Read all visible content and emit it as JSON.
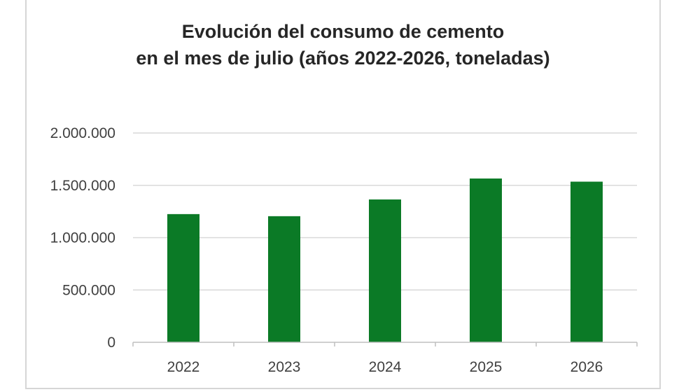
{
  "chart_data": {
    "type": "bar",
    "title_line1": "Evolución del consumo de cemento",
    "title_line2": "en el mes de julio (años 2022-2026, toneladas)",
    "xlabel": "",
    "ylabel": "",
    "categories": [
      "2022",
      "2023",
      "2024",
      "2025",
      "2026"
    ],
    "values": [
      1225000,
      1205000,
      1365000,
      1565000,
      1535000
    ],
    "ylim": [
      0,
      2000000
    ],
    "yticks": [
      0,
      500000,
      1000000,
      1500000,
      2000000
    ],
    "ytick_labels": [
      "0",
      "500.000",
      "1.000.000",
      "1.500.000",
      "2.000.000"
    ],
    "grid": true,
    "legend": "none",
    "bar_color": "#0b7a26",
    "grid_color": "#d9d9d9"
  }
}
